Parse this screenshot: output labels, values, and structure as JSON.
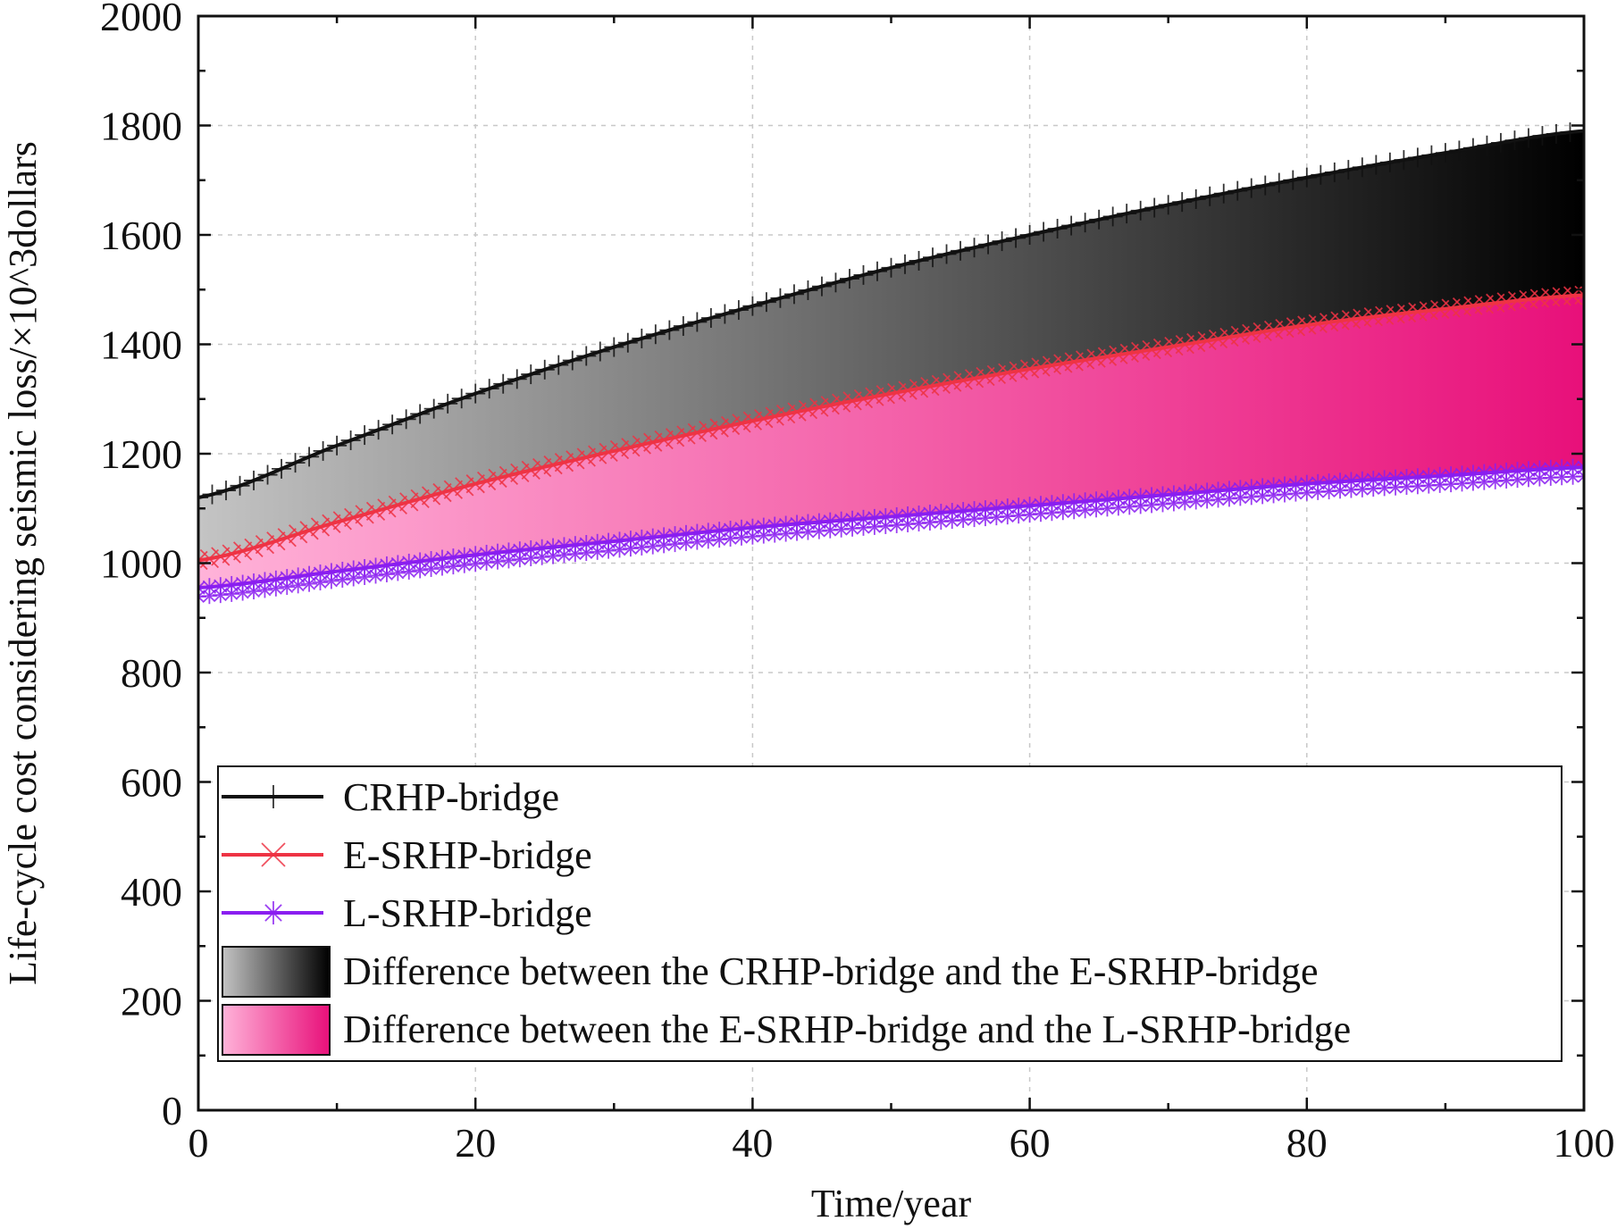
{
  "chart_data": {
    "type": "line",
    "title": "",
    "xlabel": "Time/year",
    "ylabel": "Life-cycle cost considering seismic loss/×10^3dollars",
    "xlim": [
      0,
      100
    ],
    "ylim": [
      0,
      2000
    ],
    "x_ticks": [
      0,
      20,
      40,
      60,
      80,
      100
    ],
    "y_ticks": [
      0,
      200,
      400,
      600,
      800,
      1000,
      1200,
      1400,
      1600,
      1800,
      2000
    ],
    "grid": true,
    "legend_position": "bottom-inside",
    "x": [
      0,
      10,
      20,
      30,
      40,
      50,
      60,
      70,
      80,
      90,
      100
    ],
    "series": [
      {
        "name": "CRHP-bridge",
        "marker": "plus",
        "color": "#111111",
        "values": [
          1120,
          1215,
          1310,
          1395,
          1470,
          1540,
          1600,
          1655,
          1705,
          1750,
          1790
        ]
      },
      {
        "name": "E-SRHP-bridge",
        "marker": "x",
        "color": "#ee3344",
        "values": [
          1005,
          1075,
          1145,
          1205,
          1260,
          1310,
          1355,
          1395,
          1435,
          1465,
          1490
        ]
      },
      {
        "name": "L-SRHP-bridge",
        "marker": "asterisk",
        "color": "#8a1ef0",
        "values": [
          955,
          985,
          1015,
          1040,
          1065,
          1085,
          1105,
          1125,
          1145,
          1160,
          1175
        ]
      }
    ],
    "fills": [
      {
        "name": "Difference between the CRHP-bridge and the E-SRHP-bridge",
        "between": [
          "CRHP-bridge",
          "E-SRHP-bridge"
        ],
        "gradient": [
          "#c4c4c4",
          "#000000"
        ]
      },
      {
        "name": "Difference between the E-SRHP-bridge and the L-SRHP-bridge",
        "between": [
          "E-SRHP-bridge",
          "L-SRHP-bridge"
        ],
        "gradient": [
          "#ffb3d9",
          "#e8107a"
        ]
      }
    ]
  }
}
